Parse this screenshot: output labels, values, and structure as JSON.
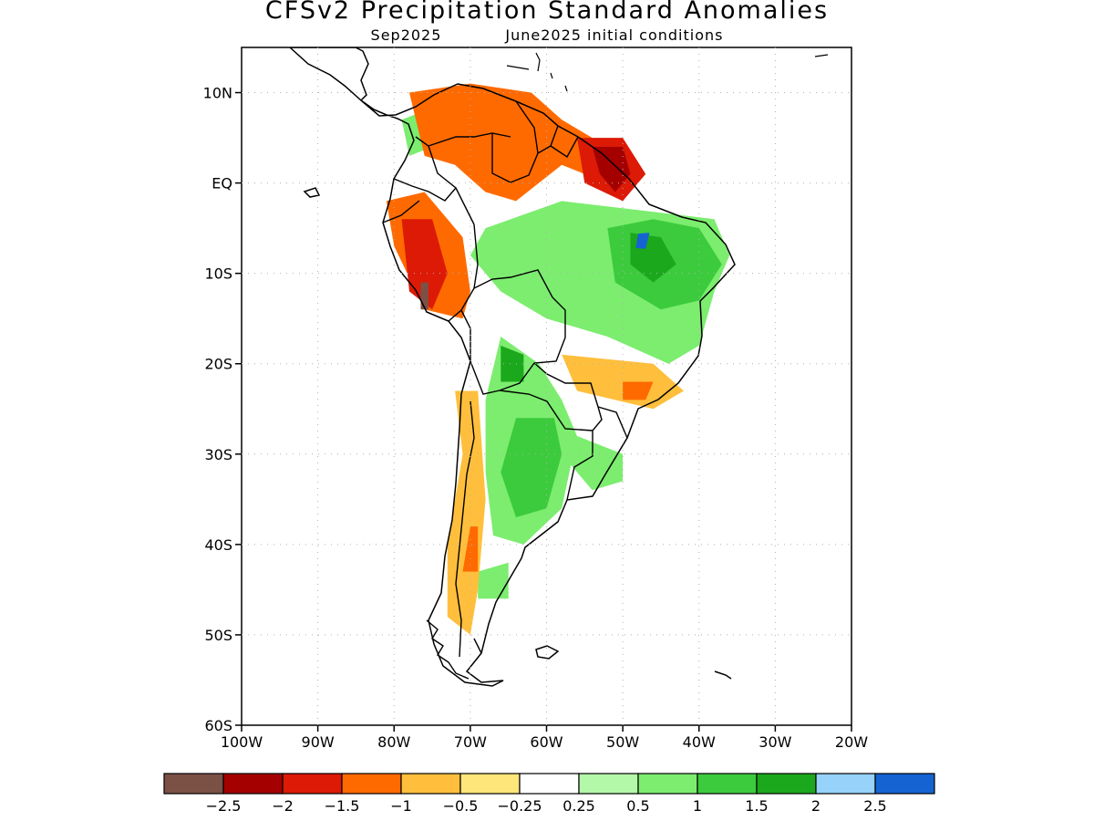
{
  "title": "CFSv2 Precipitation Standard Anomalies",
  "subtitle": {
    "target_month": "Sep2025",
    "initial_conditions": "June2025 initial conditions"
  },
  "map": {
    "region": "South America",
    "lon_range": [
      -100,
      -20
    ],
    "lat_range": [
      -60,
      15
    ],
    "lat_ticks": [
      {
        "value": 10,
        "label": "10N"
      },
      {
        "value": 0,
        "label": "EQ"
      },
      {
        "value": -10,
        "label": "10S"
      },
      {
        "value": -20,
        "label": "20S"
      },
      {
        "value": -30,
        "label": "30S"
      },
      {
        "value": -40,
        "label": "40S"
      },
      {
        "value": -50,
        "label": "50S"
      },
      {
        "value": -60,
        "label": "60S"
      }
    ],
    "lon_ticks": [
      {
        "value": -100,
        "label": "100W"
      },
      {
        "value": -90,
        "label": "90W"
      },
      {
        "value": -80,
        "label": "80W"
      },
      {
        "value": -70,
        "label": "70W"
      },
      {
        "value": -60,
        "label": "60W"
      },
      {
        "value": -50,
        "label": "50W"
      },
      {
        "value": -40,
        "label": "40W"
      },
      {
        "value": -30,
        "label": "30W"
      },
      {
        "value": -20,
        "label": "20W"
      }
    ],
    "grid": "dotted"
  },
  "colorbar": {
    "colors": [
      "#7b5146",
      "#a50000",
      "#dc1a06",
      "#ff6a00",
      "#ffbf3c",
      "#ffe67a",
      "#ffffff",
      "#b3f7a9",
      "#7ced6f",
      "#3ccb3c",
      "#1ca81c",
      "#96d2f9",
      "#1563d2"
    ],
    "labels": [
      "-2.5",
      "-2",
      "-1.5",
      "-1",
      "-0.5",
      "-0.25",
      "0.25",
      "0.5",
      "1",
      "1.5",
      "2",
      "2.5"
    ]
  },
  "anomaly_regions": [
    {
      "level": 1.0,
      "points": [
        [
          -68,
          -5
        ],
        [
          -58,
          -2
        ],
        [
          -48,
          -3
        ],
        [
          -38,
          -4
        ],
        [
          -36,
          -8
        ],
        [
          -38,
          -12
        ],
        [
          -40,
          -18
        ],
        [
          -44,
          -20
        ],
        [
          -52,
          -17
        ],
        [
          -60,
          -15
        ],
        [
          -66,
          -12
        ],
        [
          -70,
          -8
        ]
      ]
    },
    {
      "level": 1.5,
      "points": [
        [
          -52,
          -5
        ],
        [
          -46,
          -4
        ],
        [
          -40,
          -5
        ],
        [
          -37,
          -9
        ],
        [
          -40,
          -13
        ],
        [
          -45,
          -14
        ],
        [
          -51,
          -11
        ]
      ]
    },
    {
      "level": 2.0,
      "points": [
        [
          -49,
          -5.5
        ],
        [
          -45,
          -6
        ],
        [
          -43,
          -9
        ],
        [
          -46,
          -11
        ],
        [
          -49,
          -9
        ]
      ]
    },
    {
      "level": 2.5,
      "points": [
        [
          -48,
          -5.6
        ],
        [
          -46.5,
          -5.5
        ],
        [
          -47,
          -7.3
        ],
        [
          -48.3,
          -7.2
        ]
      ]
    },
    {
      "level": 1.0,
      "points": [
        [
          -66,
          -17
        ],
        [
          -61,
          -20
        ],
        [
          -58,
          -24
        ],
        [
          -56,
          -28
        ],
        [
          -58,
          -36
        ],
        [
          -63,
          -40
        ],
        [
          -67,
          -39
        ],
        [
          -68,
          -32
        ],
        [
          -68,
          -24
        ]
      ]
    },
    {
      "level": 1.5,
      "points": [
        [
          -64,
          -26
        ],
        [
          -59,
          -26
        ],
        [
          -58,
          -30
        ],
        [
          -60,
          -36
        ],
        [
          -64,
          -37
        ],
        [
          -66,
          -32
        ]
      ]
    },
    {
      "level": 2.0,
      "points": [
        [
          -66,
          -18
        ],
        [
          -63,
          -19
        ],
        [
          -63,
          -22
        ],
        [
          -66,
          -22
        ]
      ]
    },
    {
      "level": 1.0,
      "points": [
        [
          -56,
          -28
        ],
        [
          -50,
          -30
        ],
        [
          -50,
          -33
        ],
        [
          -54,
          -34
        ],
        [
          -57,
          -31
        ]
      ]
    },
    {
      "level": 1.0,
      "points": [
        [
          -69,
          -43
        ],
        [
          -65,
          -42
        ],
        [
          -65,
          -46
        ],
        [
          -69,
          -46
        ]
      ]
    },
    {
      "level": 1.0,
      "points": [
        [
          -79,
          7
        ],
        [
          -76,
          8
        ],
        [
          -75,
          4
        ],
        [
          -78,
          3
        ]
      ]
    },
    {
      "level": -1.0,
      "points": [
        [
          -78,
          10
        ],
        [
          -70,
          11
        ],
        [
          -62,
          10
        ],
        [
          -58,
          7
        ],
        [
          -54,
          5
        ],
        [
          -50,
          2
        ],
        [
          -52,
          0
        ],
        [
          -58,
          2
        ],
        [
          -64,
          -2
        ],
        [
          -68,
          -1
        ],
        [
          -72,
          2
        ],
        [
          -76,
          3
        ]
      ]
    },
    {
      "level": -1.5,
      "points": [
        [
          -56,
          5
        ],
        [
          -50,
          5
        ],
        [
          -47,
          1
        ],
        [
          -50,
          -2
        ],
        [
          -55,
          0
        ]
      ]
    },
    {
      "level": -2.0,
      "points": [
        [
          -54,
          4
        ],
        [
          -50,
          4
        ],
        [
          -49,
          1
        ],
        [
          -51,
          -1
        ],
        [
          -53,
          1
        ]
      ]
    },
    {
      "level": -1.0,
      "points": [
        [
          -81,
          -2
        ],
        [
          -76,
          -1
        ],
        [
          -71,
          -6
        ],
        [
          -70,
          -12
        ],
        [
          -71,
          -15
        ],
        [
          -76,
          -14
        ],
        [
          -80,
          -7
        ]
      ]
    },
    {
      "level": -1.5,
      "points": [
        [
          -79,
          -4
        ],
        [
          -75,
          -4
        ],
        [
          -73,
          -10
        ],
        [
          -75,
          -14
        ],
        [
          -78,
          -12
        ]
      ]
    },
    {
      "level": -2.5,
      "points": [
        [
          -76.5,
          -11
        ],
        [
          -75.5,
          -11
        ],
        [
          -75.5,
          -14
        ],
        [
          -76.5,
          -14
        ]
      ]
    },
    {
      "level": -0.5,
      "points": [
        [
          -72,
          -23
        ],
        [
          -69,
          -23
        ],
        [
          -68,
          -35
        ],
        [
          -69,
          -45
        ],
        [
          -70,
          -50
        ],
        [
          -73,
          -48
        ],
        [
          -73,
          -40
        ],
        [
          -71,
          -30
        ]
      ]
    },
    {
      "level": -1.0,
      "points": [
        [
          -70,
          -38
        ],
        [
          -69,
          -38
        ],
        [
          -69,
          -43
        ],
        [
          -71,
          -43
        ]
      ]
    },
    {
      "level": -0.5,
      "points": [
        [
          -58,
          -19
        ],
        [
          -46,
          -20
        ],
        [
          -42,
          -23
        ],
        [
          -46,
          -25
        ],
        [
          -56,
          -23
        ]
      ]
    },
    {
      "level": -1.0,
      "points": [
        [
          -50,
          -22
        ],
        [
          -46,
          -22
        ],
        [
          -47,
          -24
        ],
        [
          -50,
          -24
        ]
      ]
    }
  ]
}
